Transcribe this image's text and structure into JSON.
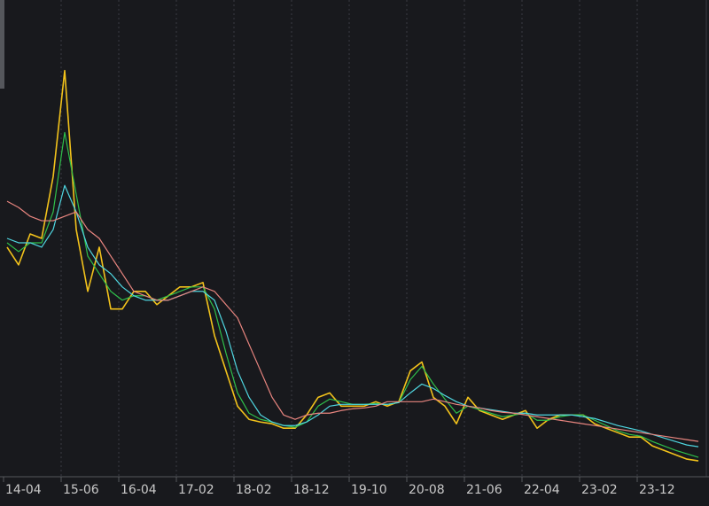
{
  "chart_data": {
    "type": "line",
    "categories": [
      "14-04",
      null,
      null,
      null,
      null,
      "15-06",
      null,
      null,
      null,
      null,
      "16-04",
      null,
      null,
      null,
      null,
      "17-02",
      null,
      null,
      null,
      null,
      "18-02",
      null,
      null,
      null,
      null,
      "18-12",
      null,
      null,
      null,
      null,
      "19-10",
      null,
      null,
      null,
      null,
      "20-08",
      null,
      null,
      null,
      null,
      "21-06",
      null,
      null,
      null,
      null,
      "22-04",
      null,
      null,
      null,
      null,
      "23-02",
      null,
      null,
      null,
      null,
      "23-12",
      null,
      null,
      null,
      null,
      null
    ],
    "series": [
      {
        "color": "#f2c21b",
        "values": [
          260,
          240,
          275,
          270,
          340,
          460,
          280,
          210,
          260,
          190,
          190,
          210,
          210,
          195,
          205,
          215,
          215,
          220,
          160,
          120,
          80,
          65,
          62,
          60,
          55,
          55,
          70,
          90,
          95,
          80,
          80,
          80,
          85,
          80,
          85,
          120,
          130,
          90,
          80,
          60,
          90,
          75,
          70,
          65,
          70,
          75,
          55,
          65,
          70,
          70,
          70,
          60,
          55,
          50,
          45,
          45,
          35,
          30,
          25,
          20,
          18
        ]
      },
      {
        "color": "#2fbf4a",
        "values": [
          265,
          255,
          265,
          265,
          300,
          390,
          320,
          250,
          230,
          210,
          200,
          205,
          205,
          200,
          205,
          210,
          215,
          215,
          190,
          140,
          95,
          72,
          65,
          62,
          58,
          56,
          62,
          80,
          88,
          85,
          82,
          82,
          83,
          82,
          84,
          110,
          125,
          105,
          88,
          72,
          80,
          76,
          72,
          68,
          70,
          72,
          64,
          64,
          68,
          70,
          70,
          64,
          58,
          52,
          48,
          46,
          40,
          35,
          30,
          26,
          22
        ]
      },
      {
        "color": "#4fd6e0",
        "values": [
          270,
          265,
          265,
          260,
          280,
          330,
          300,
          260,
          240,
          230,
          215,
          205,
          200,
          200,
          200,
          205,
          210,
          210,
          200,
          165,
          120,
          90,
          70,
          62,
          58,
          58,
          62,
          70,
          80,
          82,
          82,
          82,
          82,
          82,
          84,
          95,
          105,
          100,
          92,
          85,
          80,
          78,
          76,
          74,
          72,
          72,
          70,
          70,
          70,
          70,
          68,
          66,
          62,
          58,
          55,
          52,
          48,
          44,
          40,
          36,
          34
        ]
      },
      {
        "color": "#e8857f",
        "values": [
          312,
          305,
          295,
          290,
          290,
          295,
          300,
          280,
          270,
          250,
          230,
          210,
          205,
          200,
          200,
          205,
          210,
          215,
          210,
          195,
          180,
          150,
          120,
          90,
          70,
          65,
          70,
          72,
          72,
          75,
          77,
          78,
          80,
          85,
          85,
          85,
          85,
          88,
          85,
          82,
          80,
          78,
          75,
          73,
          72,
          70,
          68,
          66,
          64,
          62,
          60,
          58,
          56,
          54,
          52,
          50,
          48,
          46,
          44,
          42,
          40
        ]
      }
    ],
    "ylim": [
      0,
      540
    ],
    "grid": true
  }
}
